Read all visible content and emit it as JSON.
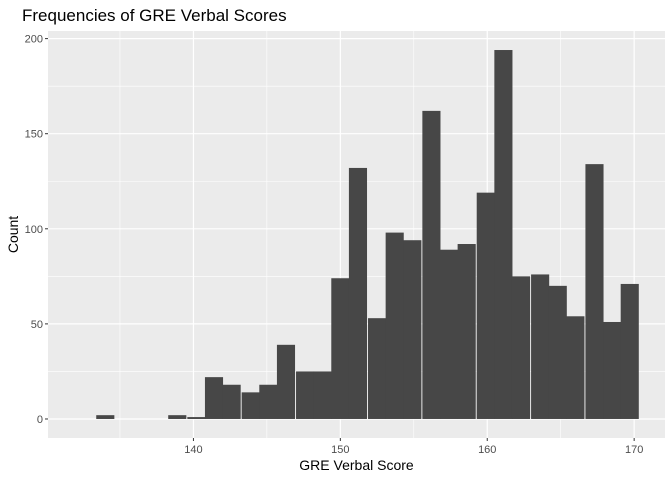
{
  "chart_data": {
    "type": "bar",
    "title": "Frequencies of GRE Verbal Scores",
    "xlabel": "GRE Verbal Score",
    "ylabel": "Count",
    "xlim": [
      130.1,
      172.1
    ],
    "ylim": [
      -10,
      204
    ],
    "xticks": [
      140,
      150,
      160,
      170
    ],
    "yticks": [
      0,
      50,
      100,
      150,
      200
    ],
    "bin_width": 1.233,
    "grid": true,
    "legend": "none",
    "background_color": "#ebebeb",
    "grid_color": "#ffffff",
    "bar_color": "#474747",
    "tick_label_color": "#4d4d4d",
    "bins": [
      {
        "x": 134.0,
        "count": 2
      },
      {
        "x": 135.2,
        "count": 0
      },
      {
        "x": 136.5,
        "count": 0
      },
      {
        "x": 137.7,
        "count": 0
      },
      {
        "x": 138.9,
        "count": 2
      },
      {
        "x": 140.2,
        "count": 1
      },
      {
        "x": 141.4,
        "count": 22
      },
      {
        "x": 142.6,
        "count": 18
      },
      {
        "x": 143.9,
        "count": 14
      },
      {
        "x": 145.1,
        "count": 18
      },
      {
        "x": 146.3,
        "count": 39
      },
      {
        "x": 147.6,
        "count": 25
      },
      {
        "x": 148.8,
        "count": 25
      },
      {
        "x": 150.0,
        "count": 74
      },
      {
        "x": 151.2,
        "count": 132
      },
      {
        "x": 152.5,
        "count": 53
      },
      {
        "x": 153.7,
        "count": 98
      },
      {
        "x": 154.9,
        "count": 94
      },
      {
        "x": 156.2,
        "count": 162
      },
      {
        "x": 157.4,
        "count": 89
      },
      {
        "x": 158.6,
        "count": 92
      },
      {
        "x": 159.9,
        "count": 119
      },
      {
        "x": 161.1,
        "count": 194
      },
      {
        "x": 162.3,
        "count": 75
      },
      {
        "x": 163.6,
        "count": 76
      },
      {
        "x": 164.8,
        "count": 70
      },
      {
        "x": 166.0,
        "count": 54
      },
      {
        "x": 167.3,
        "count": 134
      },
      {
        "x": 168.5,
        "count": 51
      },
      {
        "x": 169.7,
        "count": 71
      }
    ]
  }
}
